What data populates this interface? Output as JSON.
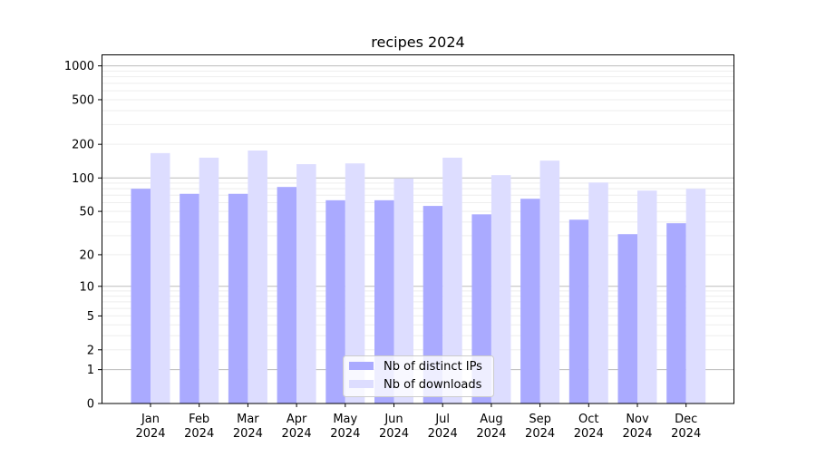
{
  "chart_data": {
    "type": "bar",
    "title": "recipes 2024",
    "xlabel": "",
    "ylabel": "",
    "yscale": "symlog (log10(1+y))",
    "ylim": [
      0,
      1200
    ],
    "yticks": [
      0,
      1,
      2,
      5,
      10,
      20,
      50,
      100,
      200,
      500,
      1000
    ],
    "grid": true,
    "legend_position": "bottom-center",
    "categories": [
      "Jan\n2024",
      "Feb\n2024",
      "Mar\n2024",
      "Apr\n2024",
      "May\n2024",
      "Jun\n2024",
      "Jul\n2024",
      "Aug\n2024",
      "Sep\n2024",
      "Oct\n2024",
      "Nov\n2024",
      "Dec\n2024"
    ],
    "series": [
      {
        "name": "Nb of distinct IPs",
        "color": "#aaaaff",
        "values": [
          80,
          72,
          72,
          83,
          63,
          63,
          56,
          47,
          65,
          42,
          31,
          39
        ]
      },
      {
        "name": "Nb of downloads",
        "color": "#ddddff",
        "values": [
          167,
          152,
          176,
          133,
          135,
          99,
          152,
          106,
          143,
          91,
          77,
          80
        ]
      }
    ]
  }
}
